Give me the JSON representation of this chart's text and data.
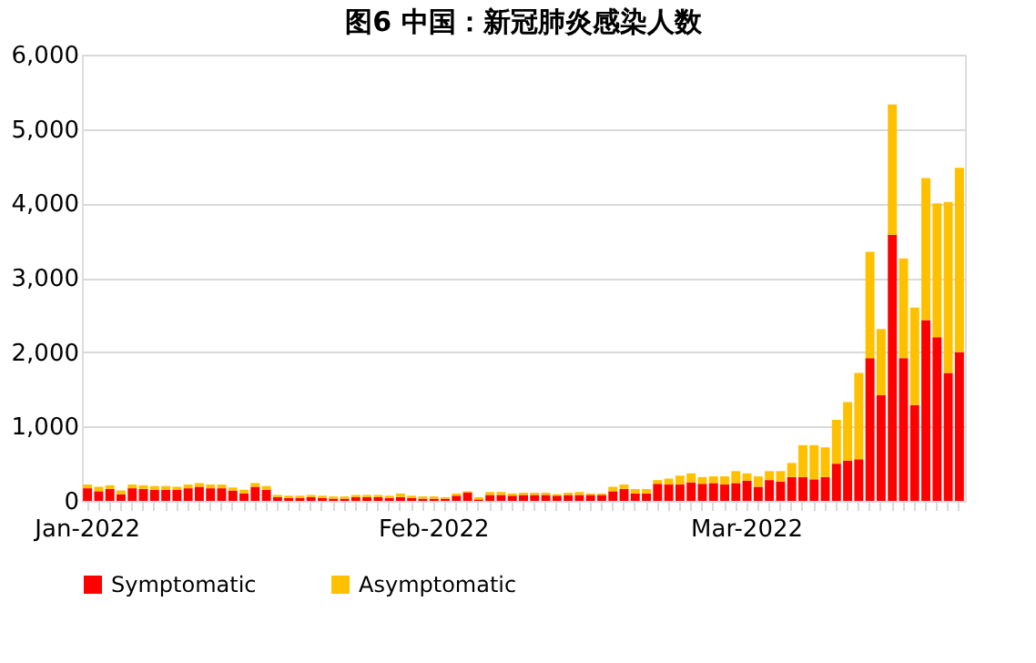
{
  "chart_data": {
    "type": "bar",
    "title": "图6 中国：新冠肺炎感染人数",
    "stacked": true,
    "categories": [
      "Jan-2022",
      null,
      null,
      null,
      null,
      null,
      null,
      null,
      null,
      null,
      null,
      null,
      null,
      null,
      null,
      null,
      null,
      null,
      null,
      null,
      null,
      null,
      null,
      null,
      null,
      null,
      null,
      null,
      null,
      null,
      null,
      "Feb-2022",
      null,
      null,
      null,
      null,
      null,
      null,
      null,
      null,
      null,
      null,
      null,
      null,
      null,
      null,
      null,
      null,
      null,
      null,
      null,
      null,
      null,
      null,
      null,
      null,
      null,
      null,
      null,
      "Mar-2022",
      null,
      null,
      null,
      null,
      null,
      null,
      null,
      null,
      null,
      null,
      null,
      null,
      null,
      null,
      null,
      null,
      null,
      null,
      null
    ],
    "series": [
      {
        "name": "Symptomatic",
        "color": "#ff0000",
        "values": [
          170,
          130,
          160,
          90,
          170,
          160,
          150,
          150,
          150,
          170,
          190,
          170,
          170,
          140,
          100,
          190,
          150,
          50,
          40,
          40,
          50,
          40,
          30,
          30,
          50,
          50,
          50,
          40,
          50,
          40,
          30,
          30,
          30,
          70,
          110,
          20,
          80,
          80,
          70,
          80,
          80,
          80,
          70,
          80,
          80,
          80,
          80,
          130,
          160,
          100,
          100,
          230,
          220,
          220,
          250,
          230,
          240,
          220,
          240,
          270,
          190,
          280,
          260,
          320,
          320,
          290,
          320,
          500,
          540,
          560,
          1920,
          1420,
          3580,
          1920,
          1290,
          2430,
          2200,
          1720,
          2000
        ]
      },
      {
        "name": "Asymptomatic",
        "color": "#ffc000",
        "values": [
          50,
          60,
          50,
          50,
          50,
          50,
          50,
          50,
          40,
          50,
          50,
          50,
          50,
          40,
          50,
          50,
          50,
          30,
          30,
          30,
          30,
          30,
          30,
          30,
          30,
          30,
          30,
          30,
          50,
          30,
          30,
          30,
          20,
          30,
          20,
          30,
          40,
          40,
          30,
          30,
          30,
          30,
          20,
          30,
          40,
          20,
          20,
          60,
          60,
          60,
          60,
          50,
          80,
          120,
          120,
          90,
          90,
          110,
          160,
          100,
          140,
          120,
          140,
          190,
          430,
          460,
          400,
          590,
          790,
          1160,
          1430,
          890,
          1750,
          1340,
          1310,
          1910,
          1800,
          2300,
          2480
        ]
      }
    ],
    "ylim": [
      0,
      6000
    ],
    "yticks": [
      0,
      {
        "value": 1000,
        "label": "1,000"
      },
      {
        "value": 2000,
        "label": "2,000"
      },
      {
        "value": 3000,
        "label": "3,000"
      },
      {
        "value": 4000,
        "label": "4,000"
      },
      {
        "value": 5000,
        "label": "5,000"
      },
      {
        "value": 6000,
        "label": "6,000"
      }
    ],
    "grid": "y",
    "legend": "bottom"
  }
}
